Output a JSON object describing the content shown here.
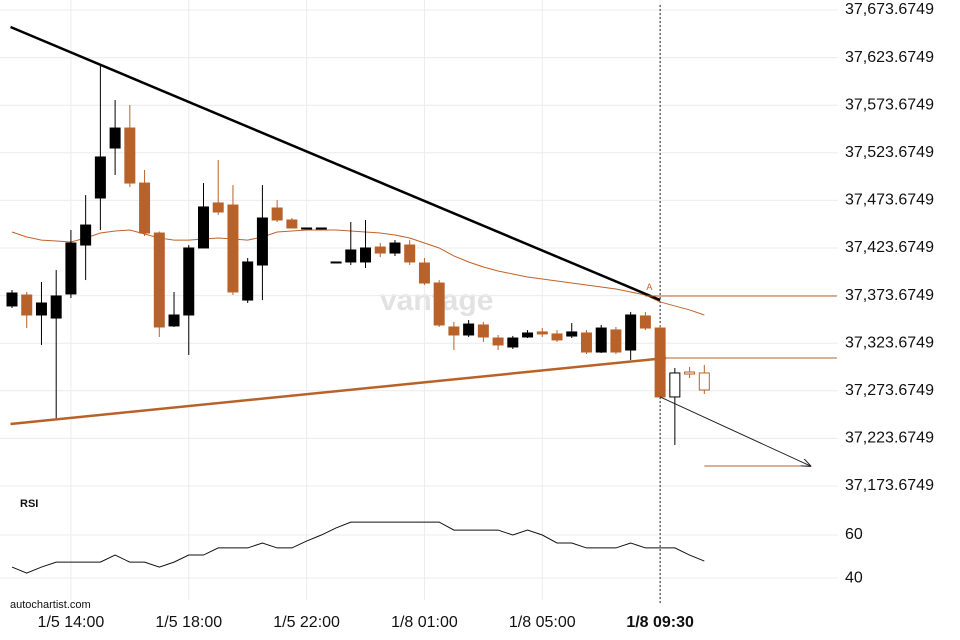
{
  "chart_data": {
    "type": "candlestick",
    "categories": [
      null,
      null,
      null,
      null,
      "1/5 14:00",
      null,
      null,
      null,
      null,
      null,
      null,
      null,
      "1/5 18:00",
      null,
      null,
      null,
      null,
      null,
      null,
      null,
      "1/5 22:00",
      null,
      null,
      null,
      null,
      null,
      null,
      null,
      "1/8 01:00",
      null,
      null,
      null,
      null,
      null,
      null,
      null,
      "1/8 05:00",
      null,
      null,
      null,
      null,
      null,
      null,
      null,
      "1/8 09:30",
      null,
      null,
      null
    ],
    "open": [
      37362.8,
      37374.3,
      37353.3,
      37350.1,
      37375.4,
      37426.8,
      37476.2,
      37528.7,
      37549.7,
      37491.9,
      37439.4,
      37341.8,
      37353.3,
      37423.7,
      37471.0,
      37468.8,
      37369.0,
      37405.8,
      37465.7,
      37453.1,
      37444.7,
      37444.7,
      37409.0,
      37409.0,
      37409.0,
      37424.7,
      37418.4,
      37426.8,
      37407.9,
      37386.9,
      37340.7,
      37332.3,
      37342.8,
      37329.1,
      37319.7,
      37330.2,
      37335.5,
      37333.4,
      37331.2,
      37334.4,
      37314.4,
      37337.6,
      37316.5,
      37352.3,
      37339.6,
      37267.2,
      37293.4,
      37292.4
    ],
    "high": [
      37379.6,
      37377.5,
      37388.0,
      37400.6,
      37442.6,
      37479.3,
      37616.9,
      37579.1,
      37573.9,
      37505.6,
      37441.0,
      37377.5,
      37426.8,
      37491.9,
      37516.1,
      37489.8,
      37413.2,
      37489.8,
      37474.1,
      37455.2,
      37444.7,
      37444.7,
      37409.0,
      37451.0,
      37453.1,
      37428.9,
      37432.0,
      37432.0,
      37413.2,
      37390.0,
      37346.0,
      37348.0,
      37346.0,
      37332.3,
      37331.3,
      37337.5,
      37339.6,
      37337.5,
      37344.9,
      37337.5,
      37342.8,
      37340.7,
      37356.5,
      37356.5,
      37342.8,
      37297.6,
      37298.7,
      37300.8
    ],
    "low": [
      37360.6,
      37339.6,
      37321.8,
      37243.0,
      37371.2,
      37390.0,
      37442.6,
      37500.4,
      37487.7,
      37436.3,
      37330.2,
      37340.7,
      37311.3,
      37423.7,
      37458.4,
      37374.3,
      37365.9,
      37368.9,
      37451.0,
      37444.7,
      37444.7,
      37444.7,
      37409.0,
      37405.8,
      37402.7,
      37414.2,
      37415.3,
      37405.8,
      37384.8,
      37340.7,
      37316.5,
      37330.2,
      37325.0,
      37316.5,
      37317.6,
      37329.1,
      37330.2,
      37325.0,
      37329.1,
      37312.3,
      37313.4,
      37312.3,
      37306.0,
      37337.5,
      37266.1,
      37216.7,
      37287.1,
      37270.3
    ],
    "close": [
      37376.4,
      37353.3,
      37365.9,
      37373.3,
      37428.9,
      37447.8,
      37519.3,
      37549.7,
      37491.9,
      37439.4,
      37340.7,
      37353.3,
      37423.7,
      37466.8,
      37461.5,
      37377.5,
      37409.0,
      37455.2,
      37453.1,
      37444.7,
      37444.7,
      37444.7,
      37409.0,
      37421.6,
      37423.7,
      37418.4,
      37428.9,
      37409.0,
      37386.9,
      37342.8,
      37332.3,
      37343.8,
      37330.2,
      37321.8,
      37329.1,
      37334.4,
      37333.4,
      37327.1,
      37335.5,
      37314.4,
      37339.6,
      37314.4,
      37353.3,
      37339.6,
      37267.2,
      37292.4,
      37291.3,
      37274.5
    ],
    "up_color": "#000000",
    "down_color": "#b8622a",
    "current_index": 44,
    "moving_average": {
      "color": "#c0622a",
      "values": [
        37440.5,
        37435.2,
        37432.0,
        37431.0,
        37430.0,
        37434.2,
        37439.4,
        37441.5,
        37442.6,
        37438.4,
        37434.2,
        37432.0,
        37432.0,
        37433.1,
        37434.2,
        37433.1,
        37432.0,
        37435.2,
        37440.5,
        37441.5,
        37442.6,
        37442.6,
        37442.6,
        37441.5,
        37440.5,
        37439.4,
        37437.3,
        37434.2,
        37428.9,
        37423.7,
        37415.3,
        37409.0,
        37403.7,
        37399.5,
        37396.4,
        37393.2,
        37391.1,
        37389.0,
        37386.9,
        37384.8,
        37382.7,
        37380.6,
        37377.5,
        37374.3,
        37367.0,
        37362.8,
        37358.6,
        37353.3
      ]
    },
    "trendlines": [
      {
        "color": "#000000",
        "from": [
          -0.1,
          37655.8
        ],
        "to": [
          44,
          37369.0
        ]
      },
      {
        "color": "#b8622a",
        "from": [
          -0.1,
          37238.8
        ],
        "to": [
          44.4,
          37308.1
        ]
      }
    ],
    "levels": [
      {
        "color": "#b8622a",
        "from": 43,
        "to": 56,
        "value": 37373.3
      },
      {
        "color": "#b8622a",
        "from": 44.4,
        "to": 56,
        "value": 37308.1
      },
      {
        "color": "#b8622a",
        "from": 47,
        "to": 54.2,
        "value": 37194.7
      }
    ],
    "arrow": {
      "color": "#222222",
      "from": [
        44,
        37267.2
      ],
      "to": [
        54.2,
        37194.7
      ]
    },
    "annotation": {
      "text": "A",
      "x": 43,
      "y": 37382.0
    },
    "ylim": [
      37164.2,
      37684.2
    ],
    "yticks": [
      {
        "value": 37673.6749,
        "label": "37,673.6749"
      },
      {
        "value": 37623.6749,
        "label": "37,623.6749"
      },
      {
        "value": 37573.6749,
        "label": "37,573.6749"
      },
      {
        "value": 37523.6749,
        "label": "37,523.6749"
      },
      {
        "value": 37473.6749,
        "label": "37,473.6749"
      },
      {
        "value": 37423.6749,
        "label": "37,423.6749"
      },
      {
        "value": 37373.6749,
        "label": "37,373.6749"
      },
      {
        "value": 37323.6749,
        "label": "37,323.6749"
      },
      {
        "value": 37273.6749,
        "label": "37,273.6749"
      },
      {
        "value": 37223.6749,
        "label": "37,223.6749"
      },
      {
        "value": 37173.6749,
        "label": "37,173.6749"
      }
    ],
    "grid": true,
    "rsi": {
      "label": "RSI",
      "color": "#111111",
      "values": [
        45.1,
        42.3,
        45.1,
        47.4,
        47.4,
        47.4,
        47.4,
        50.7,
        47.4,
        47.4,
        45.1,
        47.4,
        50.7,
        50.7,
        54.0,
        54.0,
        54.0,
        56.3,
        54.0,
        54.0,
        57.2,
        60.0,
        63.3,
        66.0,
        66.0,
        66.0,
        66.0,
        66.0,
        66.0,
        66.0,
        62.3,
        62.3,
        62.3,
        62.3,
        60.0,
        62.3,
        60.0,
        56.3,
        56.3,
        54.0,
        54.0,
        54.0,
        56.3,
        54.0,
        54.0,
        54.0,
        50.7,
        47.9
      ],
      "ylim": [
        29.8,
        78.6
      ],
      "yticks": [
        40,
        60
      ]
    },
    "watermark": "vantage",
    "source": "autochartist.com"
  }
}
